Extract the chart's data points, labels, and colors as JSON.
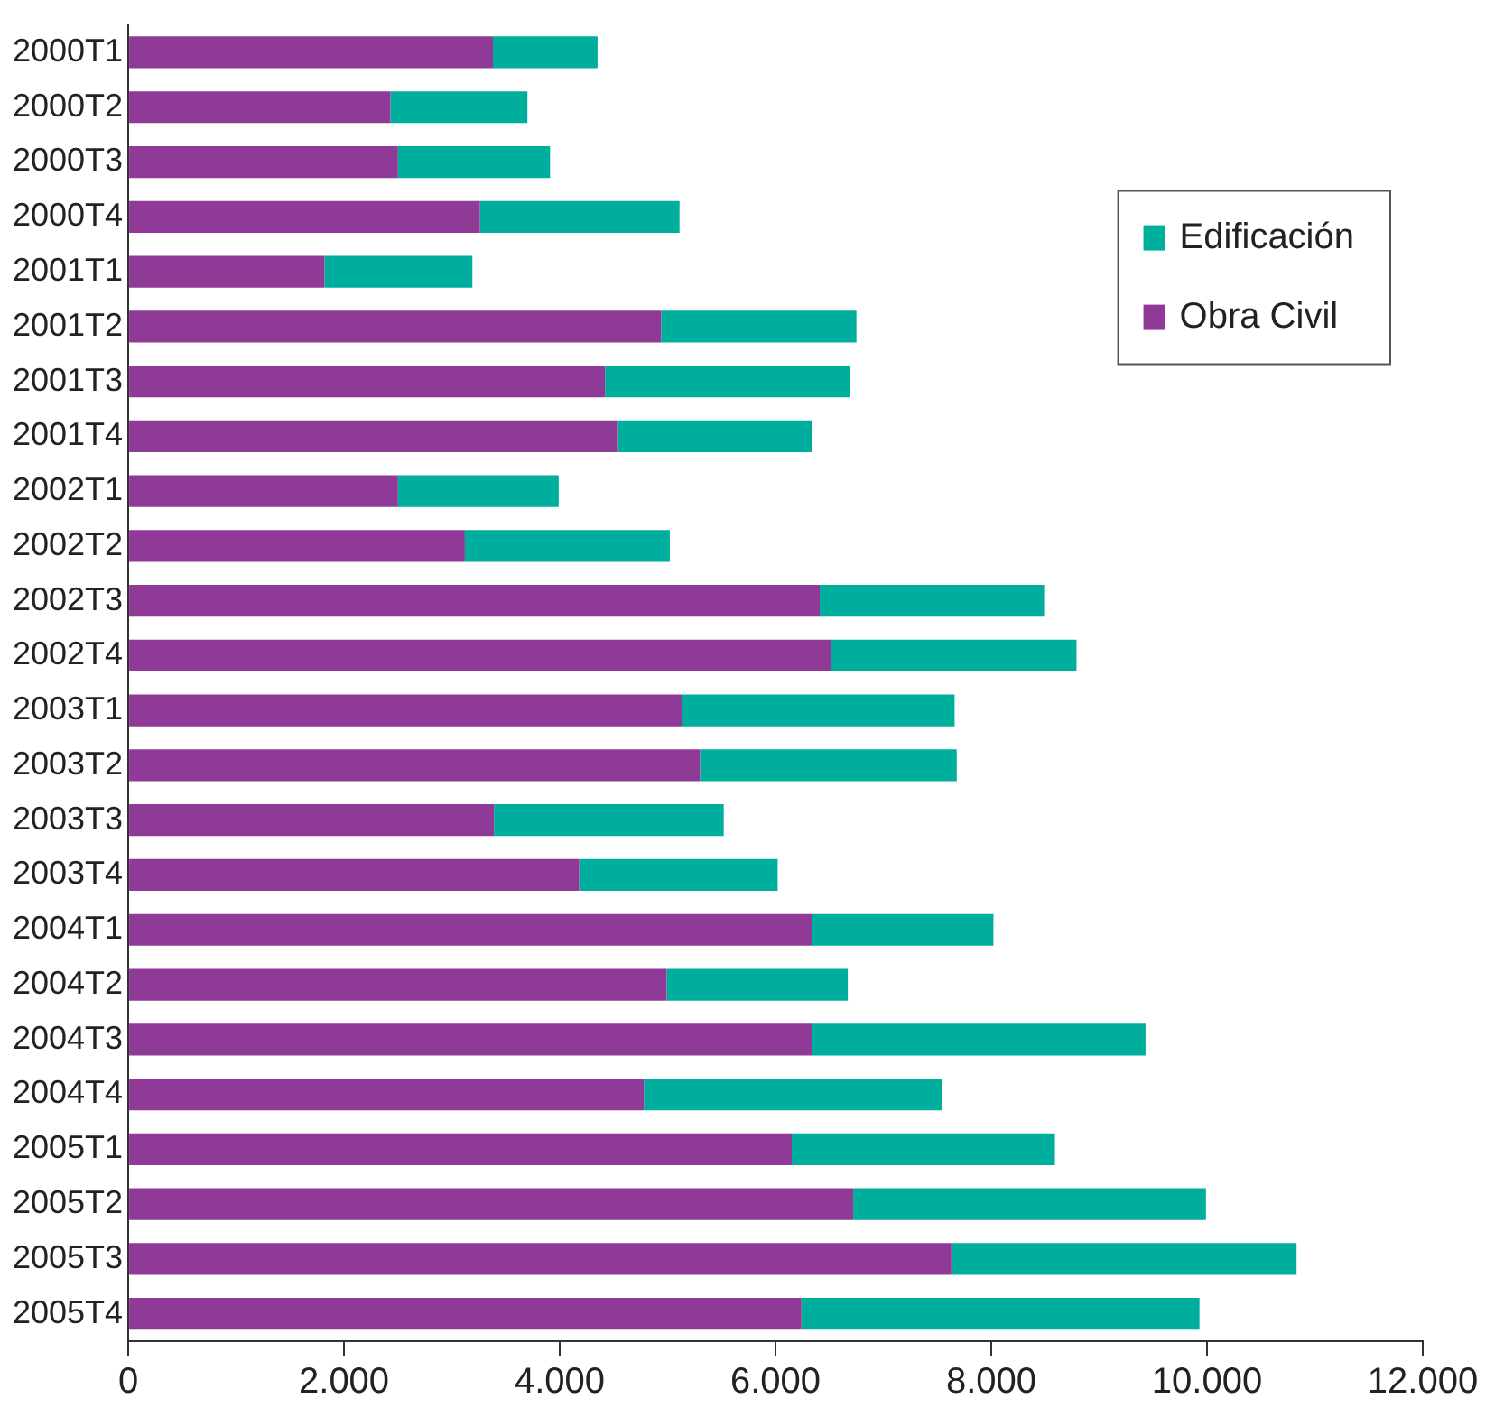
{
  "chart_data": {
    "type": "bar",
    "orientation": "horizontal",
    "stacked": true,
    "legend": "top right",
    "grid": false,
    "categories": [
      "2000T1",
      "2000T2",
      "2000T3",
      "2000T4",
      "2001T1",
      "2001T2",
      "2001T3",
      "2001T4",
      "2002T1",
      "2002T2",
      "2002T3",
      "2002T4",
      "2003T1",
      "2003T2",
      "2003T3",
      "2003T4",
      "2004T1",
      "2004T2",
      "2004T3",
      "2004T4",
      "2005T1",
      "2005T2",
      "2005T3",
      "2005T4"
    ],
    "series": [
      {
        "name": "Obra Civil",
        "color": "#8e3a96",
        "values": [
          3380,
          2430,
          2500,
          3260,
          1820,
          4940,
          4420,
          4540,
          2500,
          3120,
          6410,
          6510,
          5130,
          5300,
          3390,
          4180,
          6340,
          4990,
          6340,
          4780,
          6150,
          6720,
          7630,
          6240
        ]
      },
      {
        "name": "Edificación",
        "color": "#00ae9d",
        "values": [
          970,
          1270,
          1410,
          1850,
          1370,
          1810,
          2270,
          1800,
          1490,
          1900,
          2080,
          2280,
          2530,
          2380,
          2130,
          1840,
          1680,
          1680,
          3090,
          2760,
          2440,
          3270,
          3200,
          3690
        ]
      }
    ],
    "xlim": [
      0,
      12000
    ],
    "xticks": [
      0,
      {
        "value": 2000,
        "label": "2.000"
      },
      {
        "value": 4000,
        "label": "4.000"
      },
      {
        "value": 6000,
        "label": "6.000"
      },
      {
        "value": 8000,
        "label": "8.000"
      },
      {
        "value": 10000,
        "label": "10.000"
      },
      {
        "value": 12000,
        "label": "12.000"
      }
    ]
  }
}
